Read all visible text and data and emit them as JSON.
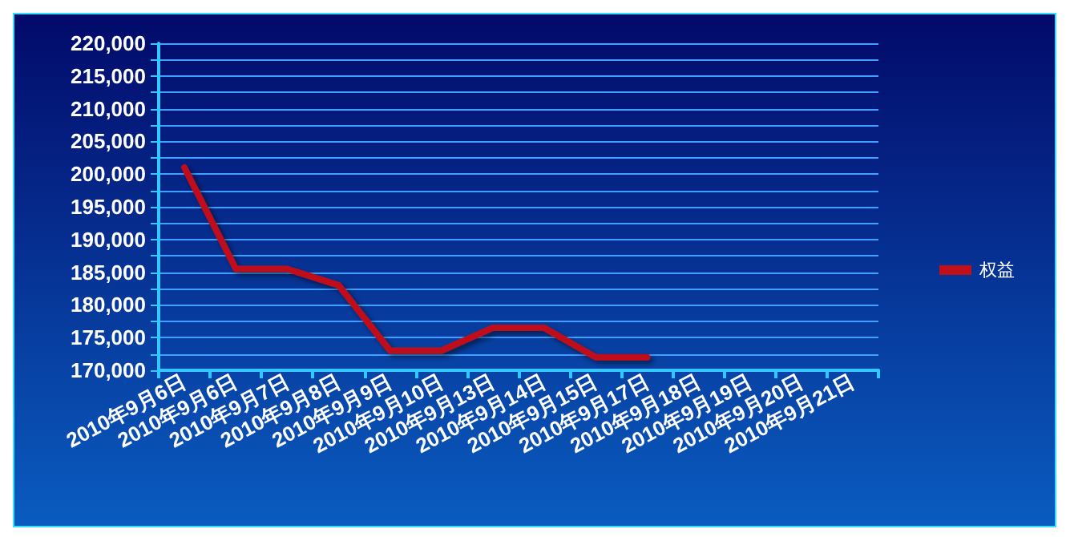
{
  "chart_data": {
    "type": "line",
    "categories": [
      "2010年9月6日",
      "2010年9月6日",
      "2010年9月7日",
      "2010年9月8日",
      "2010年9月9日",
      "2010年9月10日",
      "2010年9月13日",
      "2010年9月14日",
      "2010年9月15日",
      "2010年9月17日",
      "2010年9月18日",
      "2010年9月19日",
      "2010年9月20日",
      "2010年9月21日"
    ],
    "series": [
      {
        "name": "权益",
        "color": "#c0101a",
        "values": [
          201000,
          185500,
          185500,
          183000,
          173000,
          173000,
          176500,
          176500,
          172000,
          172000,
          null,
          null,
          null,
          null
        ]
      }
    ],
    "ylim": [
      170000,
      220000
    ],
    "yticks": [
      {
        "value": 170000,
        "label": "170,000"
      },
      {
        "value": 172500,
        "label": null
      },
      {
        "value": 175000,
        "label": "175,000"
      },
      {
        "value": 177500,
        "label": null
      },
      {
        "value": 180000,
        "label": "180,000"
      },
      {
        "value": 182500,
        "label": null
      },
      {
        "value": 185000,
        "label": "185,000"
      },
      {
        "value": 187500,
        "label": null
      },
      {
        "value": 190000,
        "label": "190,000"
      },
      {
        "value": 192500,
        "label": null
      },
      {
        "value": 195000,
        "label": "195,000"
      },
      {
        "value": 197500,
        "label": null
      },
      {
        "value": 200000,
        "label": "200,000"
      },
      {
        "value": 202500,
        "label": null
      },
      {
        "value": 205000,
        "label": "205,000"
      },
      {
        "value": 207500,
        "label": null
      },
      {
        "value": 210000,
        "label": "210,000"
      },
      {
        "value": 212500,
        "label": null
      },
      {
        "value": 215000,
        "label": "215,000"
      },
      {
        "value": 217500,
        "label": null
      },
      {
        "value": 220000,
        "label": "220,000"
      }
    ],
    "grid": "y",
    "legend": "right",
    "marker": "none",
    "line_style": "solid"
  }
}
